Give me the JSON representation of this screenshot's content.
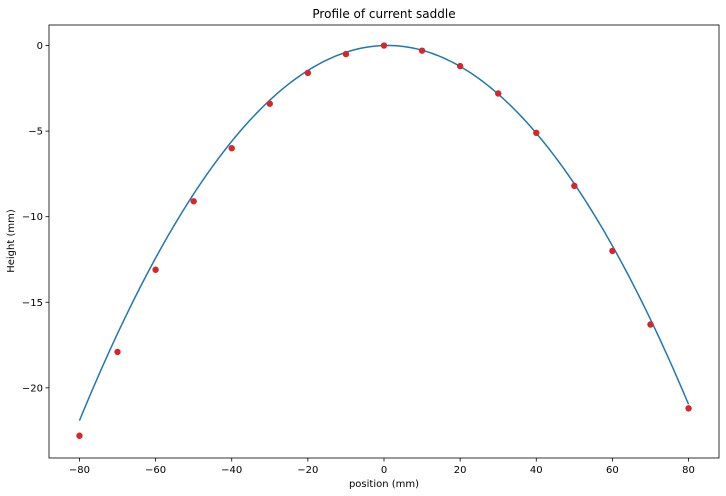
{
  "chart_data": {
    "type": "scatter",
    "title": "Profile of current saddle",
    "xlabel": "position (mm)",
    "ylabel": "Height (mm)",
    "xlim": [
      -88,
      88
    ],
    "ylim": [
      -24.1,
      1.2
    ],
    "x_ticks": [
      -80,
      -60,
      -40,
      -20,
      0,
      20,
      40,
      60,
      80
    ],
    "y_ticks": [
      0,
      -5,
      -10,
      -15,
      -20
    ],
    "grid": false,
    "legend": "none",
    "series": [
      {
        "kind": "line",
        "color": "#1f77b4",
        "fit": {
          "a": -0.00335,
          "b": 0.00594,
          "c": 0
        },
        "x_range": [
          -80,
          80
        ]
      },
      {
        "kind": "scatter",
        "color": "#d62728",
        "x": [
          -80,
          -70,
          -60,
          -50,
          -40,
          -30,
          -20,
          -10,
          0,
          10,
          20,
          30,
          40,
          50,
          60,
          70,
          80
        ],
        "y": [
          -22.8,
          -17.9,
          -13.1,
          -9.1,
          -6.0,
          -3.4,
          -1.6,
          -0.5,
          0.0,
          -0.3,
          -1.2,
          -2.8,
          -5.1,
          -8.2,
          -12.0,
          -16.3,
          -21.2
        ]
      }
    ]
  }
}
